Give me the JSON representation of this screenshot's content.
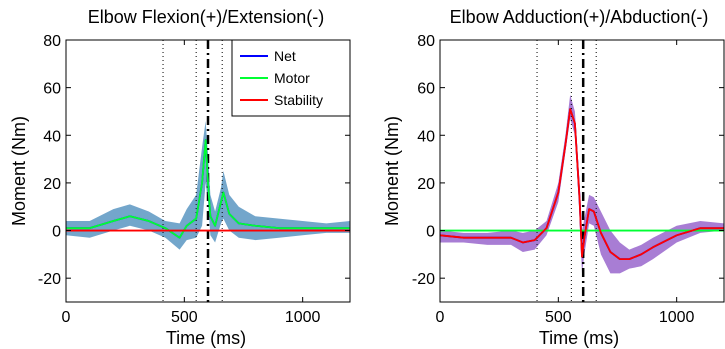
{
  "chart_data": [
    {
      "type": "line",
      "title": "Elbow Flexion(+)/Extension(-)",
      "xlabel": "Time (ms)",
      "ylabel": "Moment (Nm)",
      "xlim": [
        0,
        1200
      ],
      "ylim": [
        -30,
        80
      ],
      "xticks": [
        0,
        500,
        1000
      ],
      "yticks": [
        -20,
        0,
        20,
        40,
        60,
        80
      ],
      "vlines_dotted": [
        410,
        550,
        660
      ],
      "vline_dashdot": 600,
      "legend": {
        "placement": "top-right",
        "entries": [
          "Net",
          "Motor",
          "Stability"
        ]
      },
      "band": {
        "color": "#5b96c2",
        "x": [
          0,
          100,
          200,
          270,
          350,
          420,
          480,
          510,
          550,
          575,
          590,
          600,
          610,
          630,
          655,
          665,
          690,
          730,
          800,
          900,
          1000,
          1100,
          1200
        ],
        "upper": [
          4,
          4,
          9,
          11,
          8,
          4,
          3,
          9,
          15,
          35,
          46,
          32,
          15,
          8,
          18,
          25,
          15,
          10,
          6,
          5,
          4,
          3,
          4
        ],
        "lower": [
          -2,
          -3,
          0,
          2,
          0,
          -3,
          -8,
          -4,
          -3,
          2,
          20,
          12,
          -2,
          -5,
          3,
          5,
          0,
          -3,
          -4,
          -3,
          -2,
          -1,
          -1
        ]
      },
      "series": [
        {
          "name": "Net",
          "color": "#0000ff",
          "x": [
            0,
            100,
            200,
            270,
            350,
            420,
            480,
            510,
            550,
            575,
            590,
            600,
            610,
            630,
            655,
            665,
            690,
            730,
            800,
            900,
            1000,
            1100,
            1200
          ],
          "y": [
            1,
            1,
            4,
            6,
            4,
            1,
            -3,
            2,
            5,
            20,
            38,
            20,
            6,
            2,
            12,
            16,
            7,
            3,
            2,
            1,
            1,
            1,
            1
          ]
        },
        {
          "name": "Motor",
          "color": "#00ff33",
          "x": [
            0,
            100,
            200,
            270,
            350,
            420,
            480,
            510,
            550,
            575,
            590,
            600,
            610,
            630,
            655,
            665,
            690,
            730,
            800,
            900,
            1000,
            1100,
            1200
          ],
          "y": [
            1,
            1,
            4,
            6,
            4,
            1,
            -3,
            2,
            5,
            20,
            38,
            20,
            6,
            2,
            12,
            16,
            7,
            3,
            2,
            1,
            1,
            1,
            1
          ]
        },
        {
          "name": "Stability",
          "color": "#ff0000",
          "x": [
            0,
            1200
          ],
          "y": [
            0,
            0
          ]
        }
      ]
    },
    {
      "type": "line",
      "title": "Elbow Adduction(+)/Abduction(-)",
      "xlabel": "Time (ms)",
      "ylabel": "Moment (Nm)",
      "xlim": [
        0,
        1200
      ],
      "ylim": [
        -30,
        80
      ],
      "xticks": [
        0,
        500,
        1000
      ],
      "yticks": [
        -20,
        0,
        20,
        40,
        60,
        80
      ],
      "vlines_dotted": [
        410,
        555,
        660
      ],
      "vline_dashdot": 605,
      "band": {
        "color": "#9966cc",
        "x": [
          0,
          100,
          200,
          300,
          350,
          400,
          450,
          500,
          530,
          550,
          570,
          590,
          600,
          610,
          630,
          650,
          680,
          720,
          760,
          800,
          850,
          900,
          1000,
          1100,
          1200
        ],
        "upper": [
          0,
          -1,
          -1,
          0,
          -1,
          0,
          4,
          20,
          40,
          57,
          50,
          20,
          0,
          5,
          15,
          14,
          8,
          0,
          -5,
          -8,
          -6,
          -3,
          2,
          4,
          3
        ],
        "lower": [
          -5,
          -5,
          -6,
          -6,
          -9,
          -8,
          -2,
          12,
          33,
          47,
          40,
          5,
          -18,
          -10,
          3,
          2,
          -10,
          -18,
          -18,
          -16,
          -15,
          -12,
          -5,
          -1,
          0
        ]
      },
      "series": [
        {
          "name": "Net",
          "color": "#0000ff",
          "x": [
            0,
            100,
            200,
            300,
            350,
            400,
            450,
            500,
            530,
            550,
            570,
            590,
            600,
            610,
            630,
            650,
            680,
            720,
            760,
            800,
            850,
            900,
            1000,
            1100,
            1200
          ],
          "y": [
            -2,
            -3,
            -3,
            -3,
            -5,
            -4,
            1,
            16,
            36,
            51,
            45,
            13,
            -11,
            -3,
            9,
            8,
            -1,
            -9,
            -12,
            -12,
            -10,
            -7,
            -2,
            1,
            1
          ]
        },
        {
          "name": "Motor",
          "color": "#00ff33",
          "x": [
            0,
            1200
          ],
          "y": [
            0,
            0
          ]
        },
        {
          "name": "Stability",
          "color": "#ff0000",
          "x": [
            0,
            100,
            200,
            300,
            350,
            400,
            450,
            500,
            530,
            550,
            570,
            590,
            600,
            610,
            630,
            650,
            680,
            720,
            760,
            800,
            850,
            900,
            1000,
            1100,
            1200
          ],
          "y": [
            -2,
            -3,
            -3,
            -3,
            -5,
            -4,
            1,
            16,
            36,
            51,
            45,
            13,
            -11,
            -3,
            9,
            8,
            -1,
            -9,
            -12,
            -12,
            -10,
            -7,
            -2,
            1,
            1
          ]
        }
      ]
    }
  ]
}
